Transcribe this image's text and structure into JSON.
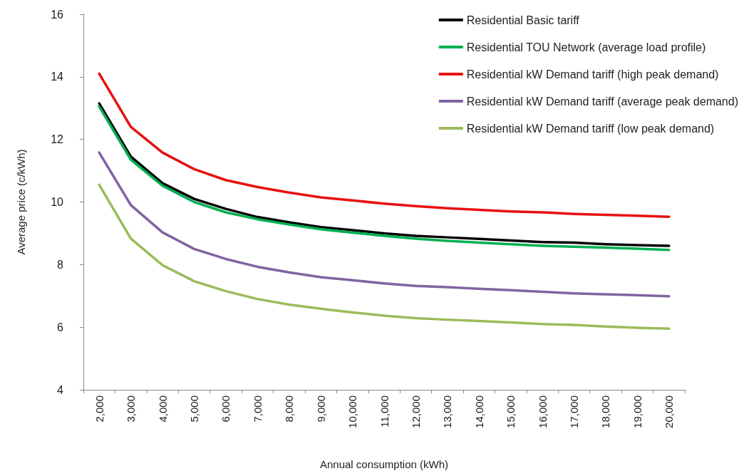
{
  "chart_data": {
    "type": "line",
    "xlabel": "Annual consumption (kWh)",
    "ylabel": "Average price (c/kWh)",
    "categories": [
      "2,000",
      "3,000",
      "4,000",
      "5,000",
      "6,000",
      "7,000",
      "8,000",
      "9,000",
      "10,000",
      "11,000",
      "12,000",
      "13,000",
      "14,000",
      "15,000",
      "16,000",
      "17,000",
      "18,000",
      "19,000",
      "20,000"
    ],
    "series": [
      {
        "name": "Residential Basic tariff",
        "color": "#000000",
        "values": [
          13.15,
          11.45,
          10.6,
          10.1,
          9.78,
          9.52,
          9.35,
          9.2,
          9.1,
          9.0,
          8.92,
          8.87,
          8.82,
          8.77,
          8.72,
          8.7,
          8.65,
          8.62,
          8.6
        ]
      },
      {
        "name": "Residential TOU Network (average load profile)",
        "color": "#00b050",
        "values": [
          13.05,
          11.35,
          10.52,
          10.0,
          9.67,
          9.45,
          9.28,
          9.13,
          9.02,
          8.92,
          8.83,
          8.76,
          8.7,
          8.65,
          8.6,
          8.57,
          8.54,
          8.51,
          8.47
        ]
      },
      {
        "name": "Residential kW Demand tariff (high peak demand)",
        "color": "#e81010",
        "values": [
          14.1,
          12.4,
          11.58,
          11.05,
          10.7,
          10.48,
          10.3,
          10.15,
          10.05,
          9.95,
          9.87,
          9.8,
          9.75,
          9.7,
          9.67,
          9.62,
          9.59,
          9.56,
          9.53
        ]
      },
      {
        "name": "Residential kW Demand tariff (average peak demand)",
        "color": "#8064a2",
        "values": [
          11.58,
          9.9,
          9.03,
          8.5,
          8.18,
          7.93,
          7.75,
          7.6,
          7.5,
          7.4,
          7.32,
          7.28,
          7.23,
          7.18,
          7.13,
          7.08,
          7.05,
          7.02,
          6.99
        ]
      },
      {
        "name": "Residential kW Demand tariff (low peak demand)",
        "color": "#9bbb59",
        "values": [
          10.55,
          8.83,
          7.98,
          7.47,
          7.15,
          6.9,
          6.72,
          6.59,
          6.47,
          6.37,
          6.29,
          6.24,
          6.2,
          6.15,
          6.1,
          6.07,
          6.02,
          5.98,
          5.95
        ]
      }
    ],
    "ylim": [
      4,
      16
    ],
    "yticks": [
      4,
      6,
      8,
      10,
      12,
      14,
      16
    ],
    "grid": false,
    "legend": "top right",
    "marker": "none",
    "line_style": "solid"
  }
}
